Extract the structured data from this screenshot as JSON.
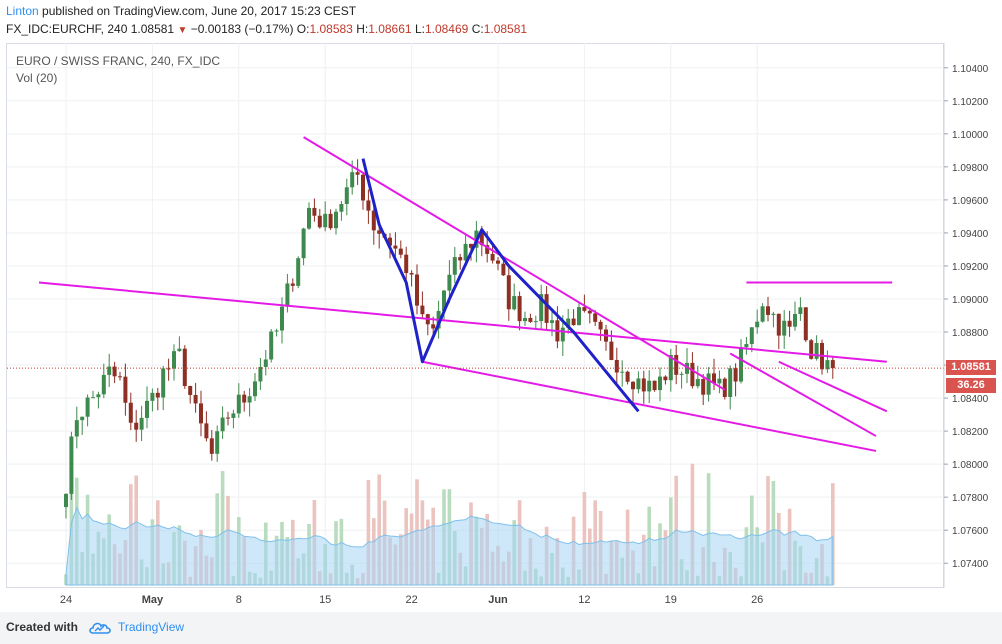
{
  "header": {
    "author": "Linton",
    "published_text": " published on TradingView.com, June 20, 2017 15:23 CEST",
    "symbol": "FX_IDC:EURCHF, 240",
    "last": "1.08581",
    "change_arrow": "▼",
    "change": "−0.00183 (−0.17%)",
    "o_label": "O:",
    "o_val": "1.08583",
    "h_label": "H:",
    "h_val": "1.08661",
    "l_label": "L:",
    "l_val": "1.08469",
    "c_label": "C:",
    "c_val": "1.08581"
  },
  "legend": {
    "title": "EURO / SWISS FRANC, 240, FX_IDC",
    "indicator": "Vol (20)"
  },
  "price_tag": "1.08581",
  "volume_tag": "36.26",
  "footer": {
    "created_with": "Created with",
    "brand": "TradingView",
    "logo_icon": "tradingview-cloud-icon"
  },
  "colors": {
    "up": "#3e8a4e",
    "down": "#8e2f24",
    "trendline": "#e41be6",
    "pattern": "#1e22c8",
    "price_tag": "#d9534f",
    "volume_tag": "#d9534f",
    "volume_ma": "#a8d6f4"
  },
  "chart_data": {
    "type": "candlestick",
    "y_axis_ticks": [
      "1.10400",
      "1.10200",
      "1.10000",
      "1.09800",
      "1.09600",
      "1.09400",
      "1.09200",
      "1.09000",
      "1.08800",
      "1.08600",
      "1.08400",
      "1.08200",
      "1.08000",
      "1.07800",
      "1.07600",
      "1.07400"
    ],
    "ylim": [
      1.0725,
      1.1055
    ],
    "x_axis_labels": [
      "24",
      "May",
      "8",
      "15",
      "22",
      "Jun",
      "12",
      "19",
      "26"
    ],
    "last_price": 1.08581,
    "anchors": [
      {
        "i": 0,
        "p": 1.079
      },
      {
        "i": 2,
        "p": 1.083
      },
      {
        "i": 5,
        "p": 1.084
      },
      {
        "i": 8,
        "p": 1.0855
      },
      {
        "i": 10,
        "p": 1.085
      },
      {
        "i": 12,
        "p": 1.082
      },
      {
        "i": 16,
        "p": 1.084
      },
      {
        "i": 18,
        "p": 1.0855
      },
      {
        "i": 21,
        "p": 1.0865
      },
      {
        "i": 24,
        "p": 1.083
      },
      {
        "i": 27,
        "p": 1.0805
      },
      {
        "i": 30,
        "p": 1.083
      },
      {
        "i": 33,
        "p": 1.084
      },
      {
        "i": 36,
        "p": 1.086
      },
      {
        "i": 39,
        "p": 1.088
      },
      {
        "i": 42,
        "p": 1.0915
      },
      {
        "i": 45,
        "p": 1.0955
      },
      {
        "i": 48,
        "p": 1.0945
      },
      {
        "i": 51,
        "p": 1.096
      },
      {
        "i": 54,
        "p": 1.0975
      },
      {
        "i": 57,
        "p": 1.0945
      },
      {
        "i": 60,
        "p": 1.0935
      },
      {
        "i": 63,
        "p": 1.092
      },
      {
        "i": 66,
        "p": 1.0885
      },
      {
        "i": 68,
        "p": 1.088
      },
      {
        "i": 70,
        "p": 1.0905
      },
      {
        "i": 73,
        "p": 1.0925
      },
      {
        "i": 76,
        "p": 1.094
      },
      {
        "i": 79,
        "p": 1.0925
      },
      {
        "i": 82,
        "p": 1.09
      },
      {
        "i": 85,
        "p": 1.089
      },
      {
        "i": 88,
        "p": 1.0895
      },
      {
        "i": 91,
        "p": 1.088
      },
      {
        "i": 94,
        "p": 1.089
      },
      {
        "i": 97,
        "p": 1.0885
      },
      {
        "i": 100,
        "p": 1.087
      },
      {
        "i": 103,
        "p": 1.086
      },
      {
        "i": 106,
        "p": 1.085
      },
      {
        "i": 109,
        "p": 1.0845
      },
      {
        "i": 112,
        "p": 1.086
      },
      {
        "i": 115,
        "p": 1.0855
      },
      {
        "i": 118,
        "p": 1.085
      },
      {
        "i": 121,
        "p": 1.0845
      },
      {
        "i": 124,
        "p": 1.0855
      },
      {
        "i": 127,
        "p": 1.088
      },
      {
        "i": 129,
        "p": 1.09
      },
      {
        "i": 132,
        "p": 1.0885
      },
      {
        "i": 134,
        "p": 1.088
      },
      {
        "i": 136,
        "p": 1.0895
      },
      {
        "i": 138,
        "p": 1.087
      },
      {
        "i": 141,
        "p": 1.086
      },
      {
        "i": 142,
        "p": 1.0858
      }
    ],
    "volume_range": [
      4,
      82
    ],
    "annotations": [
      {
        "name": "long-support-line",
        "p": [
          [
            -5,
            1.091
          ],
          [
            152,
            1.0862
          ]
        ]
      },
      {
        "name": "wedge-upper-line",
        "p": [
          [
            44,
            1.0998
          ],
          [
            122,
            1.0845
          ]
        ]
      },
      {
        "name": "wedge-lower-line",
        "p": [
          [
            66,
            1.0862
          ],
          [
            150,
            1.0808
          ]
        ]
      },
      {
        "name": "channel-upper-line",
        "p": [
          [
            123,
            1.0867
          ],
          [
            150,
            1.0817
          ]
        ]
      },
      {
        "name": "channel-lower-line",
        "p": [
          [
            132,
            1.0862
          ],
          [
            152,
            1.0832
          ]
        ]
      },
      {
        "name": "resistance-line",
        "p": [
          [
            126,
            1.091
          ],
          [
            153,
            1.091
          ]
        ]
      },
      {
        "name": "pattern-path",
        "p": [
          [
            55,
            1.0985
          ],
          [
            58,
            1.0945
          ],
          [
            63,
            1.091
          ],
          [
            66,
            1.0862
          ],
          [
            71,
            1.09
          ],
          [
            77,
            1.0942
          ],
          [
            82,
            1.092
          ],
          [
            88,
            1.09
          ],
          [
            94,
            1.088
          ],
          [
            99,
            1.086
          ],
          [
            106,
            1.0832
          ]
        ]
      }
    ]
  }
}
